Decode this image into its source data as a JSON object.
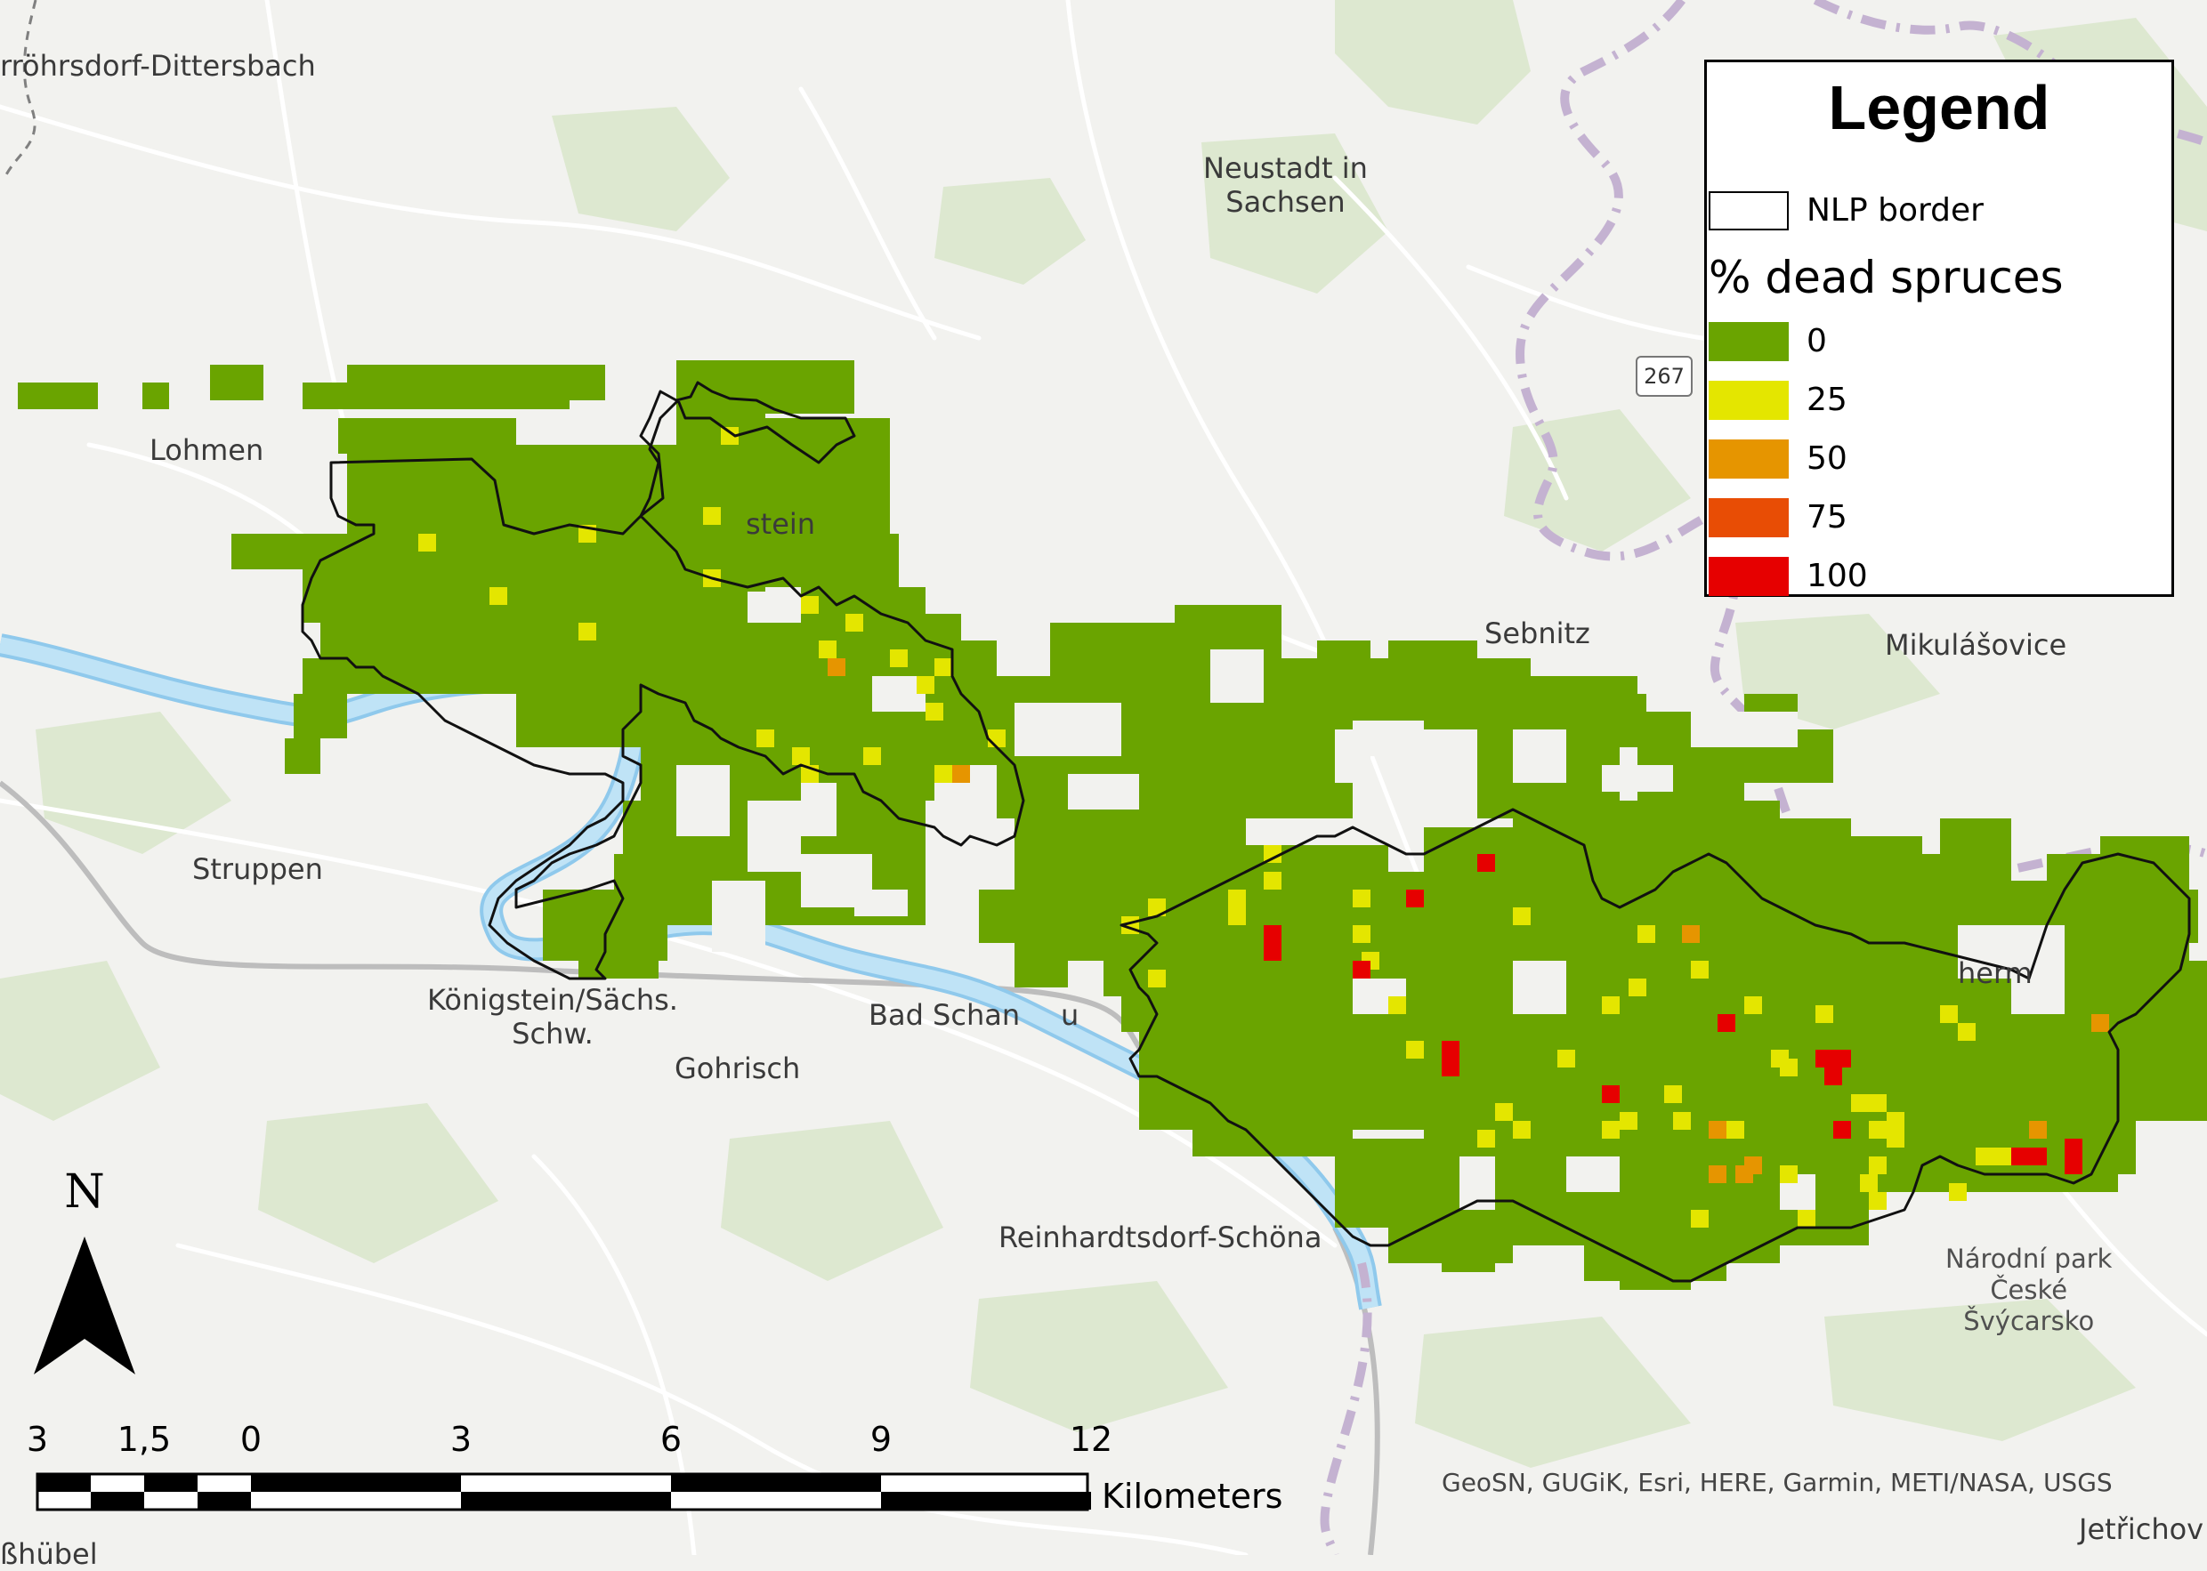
{
  "map": {
    "places": [
      {
        "name": "rröhrsdorf-Dittersbach"
      },
      {
        "name": "Neustadt in\nSachsen"
      },
      {
        "name": "Lohmen"
      },
      {
        "name": "stein"
      },
      {
        "name": "Sebnitz"
      },
      {
        "name": "Mikulášovice"
      },
      {
        "name": "Struppen"
      },
      {
        "name": "Königstein/Sächs.\nSchw."
      },
      {
        "name": "Bad Schan"
      },
      {
        "name": "u"
      },
      {
        "name": "Gohrisch"
      },
      {
        "name": "Reinhardtsdorf-Schöna"
      },
      {
        "name": "herm"
      },
      {
        "name": "Národní park\nČeské\nŠvýcarsko"
      },
      {
        "name": "Jetřichov"
      },
      {
        "name": "ßhübel"
      }
    ],
    "road_shield": "267",
    "colors": {
      "land": "#f2f2ef",
      "forest": "#dde8d0",
      "water": "#bfe3f6",
      "border": "#c4b2d1",
      "class_0": "#6aa400",
      "class_25": "#e4e600",
      "class_50": "#e69500",
      "class_75": "#e84d05",
      "class_100": "#e60000"
    }
  },
  "legend": {
    "title": "Legend",
    "border_label": "NLP border",
    "subtitle": "% dead spruces",
    "classes": [
      {
        "label": "0",
        "color": "#6aa400"
      },
      {
        "label": "25",
        "color": "#e4e600"
      },
      {
        "label": "50",
        "color": "#e69500"
      },
      {
        "label": "75",
        "color": "#e84d05"
      },
      {
        "label": "100",
        "color": "#e60000"
      }
    ]
  },
  "north_arrow": {
    "label": "N",
    "icon": "north-arrow-icon"
  },
  "scale_bar": {
    "ticks": [
      "3",
      "1,5",
      "0",
      "3",
      "6",
      "9",
      "12"
    ],
    "units": "Kilometers"
  },
  "attribution": "GeoSN, GUGiK, Esri, HERE, Garmin, METI/NASA, USGS"
}
